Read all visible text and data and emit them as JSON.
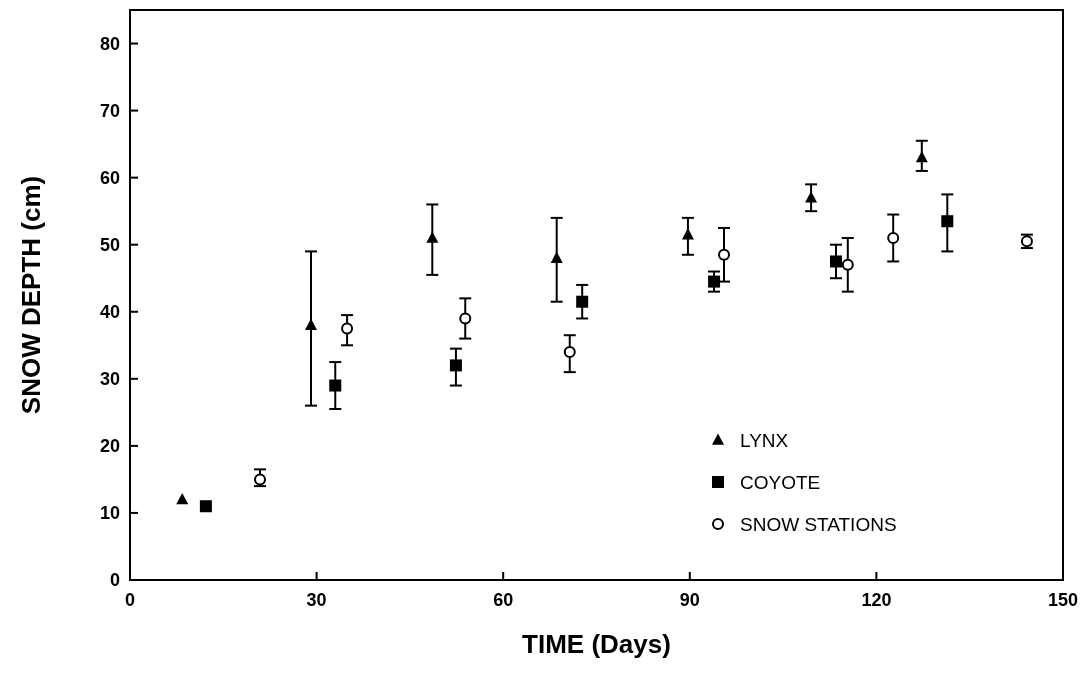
{
  "chart_data": {
    "type": "scatter",
    "xlabel": "TIME  (Days)",
    "ylabel": "SNOW DEPTH (cm)",
    "xlim": [
      0,
      150
    ],
    "ylim": [
      0,
      85
    ],
    "xticks": [
      0,
      30,
      60,
      90,
      120,
      150
    ],
    "yticks": [
      0,
      10,
      20,
      30,
      40,
      50,
      60,
      70,
      80
    ],
    "grid": false,
    "legend": "bottom right",
    "series": [
      {
        "name": "LYNX",
        "color": "#000000",
        "marker": "triangle",
        "x": [
          8.4,
          29.1,
          48.6,
          68.6,
          89.7,
          109.5,
          127.3
        ],
        "values": [
          12,
          38,
          51,
          48,
          51.5,
          57,
          63
        ],
        "errors": [
          null,
          [
            26,
            49
          ],
          [
            45.5,
            56
          ],
          [
            41.5,
            54
          ],
          [
            48.5,
            54
          ],
          [
            55,
            59
          ],
          [
            61,
            65.5
          ]
        ]
      },
      {
        "name": "COYOTE",
        "color": "#000000",
        "marker": "square",
        "x": [
          12.2,
          33,
          52.4,
          72.7,
          93.9,
          113.5,
          131.4
        ],
        "values": [
          11,
          29,
          32,
          41.5,
          44.5,
          47.5,
          53.5
        ],
        "errors": [
          null,
          [
            25.5,
            32.5
          ],
          [
            29,
            34.5
          ],
          [
            39,
            44
          ],
          [
            43,
            46
          ],
          [
            45,
            50
          ],
          [
            49,
            57.5
          ]
        ]
      },
      {
        "name": "SNOW STATIONS",
        "color": "#000000",
        "marker": "circle",
        "x": [
          20.9,
          34.9,
          53.9,
          70.7,
          95.5,
          115.4,
          122.7,
          144.2
        ],
        "values": [
          15,
          37.5,
          39,
          34,
          48.5,
          47,
          51,
          50.5
        ],
        "errors": [
          [
            14,
            16.5
          ],
          [
            35,
            39.5
          ],
          [
            36,
            42
          ],
          [
            31,
            36.5
          ],
          [
            44.5,
            52.5
          ],
          [
            43,
            51
          ],
          [
            47.5,
            54.5
          ],
          [
            49.5,
            51.5
          ]
        ]
      }
    ]
  }
}
